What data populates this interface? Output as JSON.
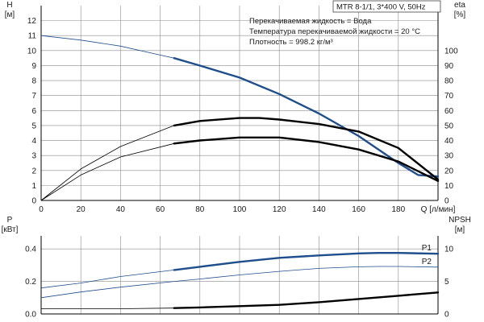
{
  "chart_data": [
    {
      "type": "line",
      "x_axis": {
        "label": "Q [л/мин]",
        "ticks": [
          0,
          20,
          40,
          60,
          80,
          100,
          120,
          140,
          160,
          180
        ],
        "range": [
          0,
          200
        ]
      },
      "y_left": {
        "label_line1": "H",
        "label_line2": "[м]",
        "ticks": [
          0,
          1,
          2,
          3,
          4,
          5,
          6,
          7,
          8,
          9,
          10,
          11,
          12
        ],
        "range": [
          0,
          13
        ]
      },
      "y_right": {
        "label_line1": "eta",
        "label_line2": "[%]",
        "ticks": [
          0,
          10,
          20,
          30,
          40,
          50,
          60,
          70,
          80,
          90,
          100
        ],
        "range": [
          0,
          130
        ]
      },
      "title_box": "MTR 8-1/1, 3*400 V, 50Hz",
      "annotations": [
        "Перекачиваемая жидкость = Вода",
        "Температура перекачиваемой жидкости = 20 °C",
        "Плотность = 998.2 кг/м³"
      ],
      "grid": true,
      "series": [
        {
          "axis": "left",
          "color": "#1f4e8c",
          "x": [
            0,
            20,
            40,
            60,
            67,
            80,
            100,
            120,
            140,
            160,
            170,
            180,
            190,
            200
          ],
          "y": [
            11.0,
            10.7,
            10.3,
            9.7,
            9.5,
            9.0,
            8.2,
            7.1,
            5.8,
            4.3,
            3.4,
            2.5,
            1.7,
            1.6
          ],
          "op_from": 67
        },
        {
          "axis": "right",
          "color": "#000000",
          "x": [
            0,
            20,
            40,
            67,
            80,
            100,
            110,
            120,
            140,
            160,
            180,
            200
          ],
          "y": [
            0,
            21,
            36,
            50,
            53,
            55,
            55,
            54,
            51,
            46,
            35,
            14
          ],
          "op_from": 67
        },
        {
          "axis": "left",
          "color": "#000000",
          "x": [
            0,
            20,
            40,
            67,
            80,
            100,
            110,
            120,
            140,
            160,
            180,
            200
          ],
          "y": [
            0,
            1.7,
            2.9,
            3.8,
            4.0,
            4.2,
            4.2,
            4.2,
            3.9,
            3.4,
            2.6,
            1.3
          ],
          "op_from": 67
        }
      ]
    },
    {
      "type": "line",
      "x_axis": {
        "range": [
          0,
          200
        ]
      },
      "y_left": {
        "label_line1": "P",
        "label_line2": "[кВт]",
        "ticks": [
          0.0,
          0.2,
          0.4
        ],
        "range": [
          0,
          0.48
        ]
      },
      "y_right": {
        "label_line1": "NPSH",
        "label_line2": "[м]",
        "ticks": [
          0,
          5,
          10
        ],
        "range": [
          0,
          12
        ]
      },
      "grid": true,
      "series": [
        {
          "name": "P1",
          "axis": "left",
          "color": "#1f4e8c",
          "x": [
            0,
            20,
            40,
            67,
            80,
            100,
            120,
            140,
            160,
            170,
            180,
            200
          ],
          "y": [
            0.16,
            0.19,
            0.23,
            0.27,
            0.29,
            0.32,
            0.345,
            0.36,
            0.372,
            0.375,
            0.375,
            0.37
          ],
          "op_from": 67
        },
        {
          "name": "P2",
          "axis": "left",
          "color": "#1f4e8c",
          "x": [
            0,
            20,
            40,
            67,
            80,
            100,
            120,
            140,
            160,
            170,
            180,
            200
          ],
          "y": [
            0.1,
            0.135,
            0.165,
            0.2,
            0.215,
            0.24,
            0.262,
            0.28,
            0.29,
            0.292,
            0.292,
            0.288
          ],
          "op_from": 999
        },
        {
          "axis": "right",
          "color": "#000000",
          "x": [
            0,
            20,
            40,
            67,
            80,
            100,
            120,
            140,
            160,
            180,
            200
          ],
          "y": [
            0.8,
            0.8,
            0.8,
            0.9,
            1.0,
            1.2,
            1.4,
            1.8,
            2.3,
            2.8,
            3.3
          ],
          "op_from": 67
        }
      ]
    }
  ]
}
